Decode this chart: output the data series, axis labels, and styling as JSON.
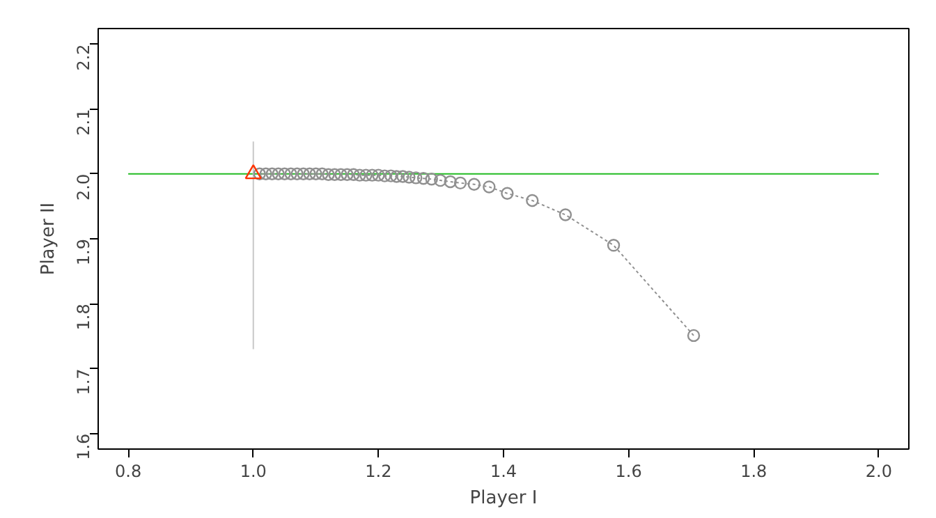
{
  "chart_data": {
    "type": "line",
    "xlabel": "Player I",
    "ylabel": "Player II",
    "xlim": [
      0.752,
      2.048
    ],
    "ylim": [
      1.576,
      2.224
    ],
    "xticks": [
      {
        "value": 0.8,
        "label": "0.8"
      },
      {
        "value": 1.0,
        "label": "1.0"
      },
      {
        "value": 1.2,
        "label": "1.2"
      },
      {
        "value": 1.4,
        "label": "1.4"
      },
      {
        "value": 1.6,
        "label": "1.6"
      },
      {
        "value": 1.8,
        "label": "1.8"
      },
      {
        "value": 2.0,
        "label": "2.0"
      }
    ],
    "yticks": [
      {
        "value": 1.6,
        "label": "1.6"
      },
      {
        "value": 1.7,
        "label": "1.7"
      },
      {
        "value": 1.8,
        "label": "1.8"
      },
      {
        "value": 1.9,
        "label": "1.9"
      },
      {
        "value": 2.0,
        "label": "2.0"
      },
      {
        "value": 2.1,
        "label": "2.1"
      },
      {
        "value": 2.2,
        "label": "2.2"
      }
    ],
    "grid": false,
    "series": [
      {
        "color": "#22bb22",
        "marker": "none",
        "line_style": "solid",
        "x": [
          0.8,
          2.0
        ],
        "values": [
          2.0,
          2.0
        ]
      },
      {
        "color": "#c8c8c8",
        "marker": "none",
        "line_style": "solid",
        "x": [
          1.0,
          1.0
        ],
        "values": [
          1.73,
          2.05
        ]
      },
      {
        "color": "#909090",
        "marker": "circle",
        "line_style": "dotted",
        "x": [
          1.704,
          1.576,
          1.499,
          1.446,
          1.406,
          1.377,
          1.353,
          1.331,
          1.315,
          1.299,
          1.285,
          1.272,
          1.26,
          1.249,
          1.239,
          1.229,
          1.22,
          1.21,
          1.2,
          1.19,
          1.18,
          1.17,
          1.16,
          1.15,
          1.14,
          1.13,
          1.12,
          1.11,
          1.1,
          1.09,
          1.08,
          1.07,
          1.06,
          1.05,
          1.04,
          1.03,
          1.02,
          1.01
        ],
        "values": [
          1.751,
          1.89,
          1.937,
          1.959,
          1.97,
          1.98,
          1.984,
          1.986,
          1.988,
          1.99,
          1.992,
          1.993,
          1.994,
          1.995,
          1.996,
          1.996,
          1.997,
          1.997,
          1.998,
          1.998,
          1.998,
          1.998,
          1.999,
          1.999,
          1.999,
          1.999,
          1.999,
          2.0,
          2.0,
          2.0,
          2.0,
          2.0,
          2.0,
          2.0,
          2.0,
          2.0,
          2.0,
          2.0
        ]
      },
      {
        "type": "scatter",
        "color": "#ff3300",
        "marker": "triangle",
        "x": [
          1.0
        ],
        "values": [
          2.0
        ]
      }
    ]
  }
}
